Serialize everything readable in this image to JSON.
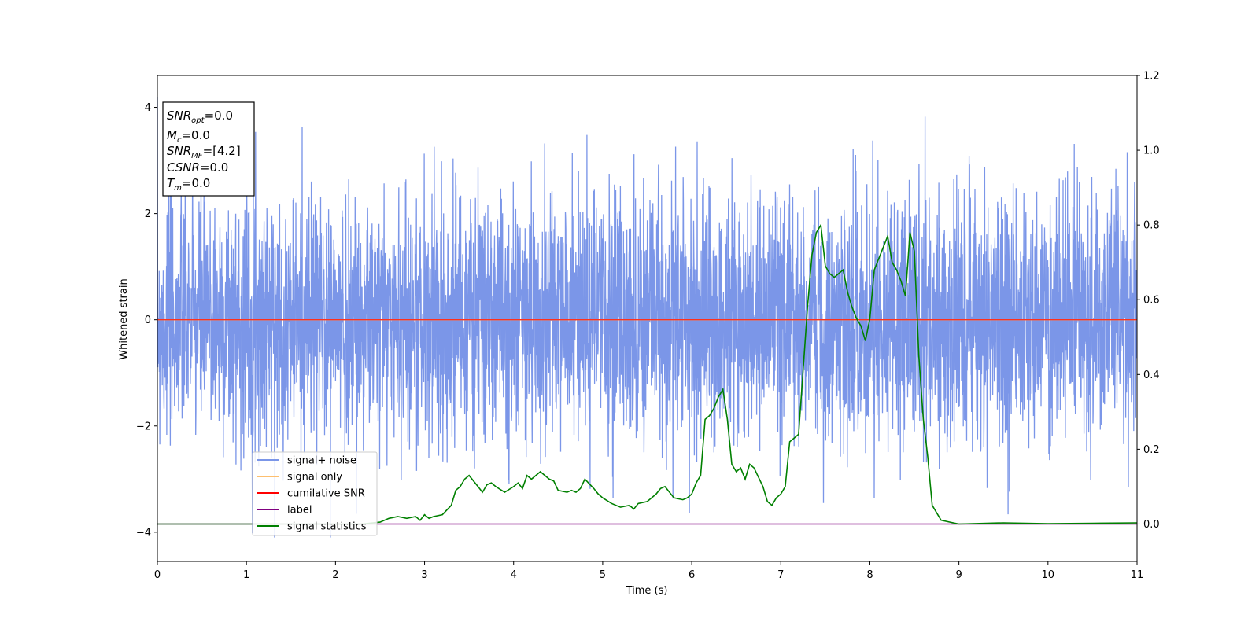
{
  "chart_data": {
    "type": "line",
    "xlabel": "Time (s)",
    "ylabel": "Whitened strain",
    "xlim": [
      0,
      11
    ],
    "ylim": [
      -4.55,
      4.6
    ],
    "y2lim": [
      -0.1,
      1.2
    ],
    "x_ticks": [
      "0",
      "1",
      "2",
      "3",
      "4",
      "5",
      "6",
      "7",
      "8",
      "9",
      "10",
      "11"
    ],
    "y_ticks": [
      "−4",
      "−2",
      "0",
      "2",
      "4"
    ],
    "y2_ticks": [
      "0.0",
      "0.2",
      "0.4",
      "0.6",
      "0.8",
      "1.0",
      "1.2"
    ],
    "grid": false,
    "legend_position": "lower-left",
    "info_box": {
      "position": "top-left",
      "lines": [
        {
          "sym": "SNR",
          "sub": "opt",
          "val": "=0.0"
        },
        {
          "sym": "M",
          "sub": "c",
          "val": "=0.0"
        },
        {
          "sym": "SNR",
          "sub": "MF",
          "val": "=[4.2]"
        },
        {
          "sym": "CSNR",
          "sub": "",
          "val": "=0.0"
        },
        {
          "sym": "T",
          "sub": "m",
          "val": "=0.0"
        }
      ]
    },
    "noise_seed": 7,
    "series": [
      {
        "name": "signal+ noise",
        "color": "#7b96e8",
        "axis": "left",
        "summary": "dense whitened noise, roughly 1.2 std, spanning about -4.1 to 4.2 over 0-11 s"
      },
      {
        "name": "signal only",
        "color": "#fdbf6f",
        "axis": "left",
        "x": [
          0,
          11
        ],
        "y": [
          0,
          0
        ]
      },
      {
        "name": "cumilative SNR",
        "color": "#ff0000",
        "axis": "left",
        "x": [
          0,
          11
        ],
        "y": [
          0,
          0
        ]
      },
      {
        "name": "label",
        "color": "#800080",
        "axis": "right",
        "x": [
          0,
          11
        ],
        "y": [
          0,
          0
        ]
      },
      {
        "name": "signal statistics",
        "color": "#008000",
        "axis": "right",
        "x": [
          0,
          0.5,
          1,
          1.5,
          2,
          2.3,
          2.5,
          2.6,
          2.7,
          2.8,
          2.9,
          2.95,
          3.0,
          3.05,
          3.1,
          3.2,
          3.3,
          3.35,
          3.4,
          3.45,
          3.5,
          3.6,
          3.65,
          3.7,
          3.75,
          3.8,
          3.9,
          4.0,
          4.05,
          4.1,
          4.15,
          4.2,
          4.3,
          4.4,
          4.45,
          4.5,
          4.6,
          4.65,
          4.7,
          4.75,
          4.8,
          4.9,
          4.95,
          5.0,
          5.1,
          5.2,
          5.3,
          5.35,
          5.4,
          5.5,
          5.6,
          5.65,
          5.7,
          5.8,
          5.9,
          5.95,
          6.0,
          6.05,
          6.1,
          6.15,
          6.2,
          6.25,
          6.3,
          6.35,
          6.4,
          6.45,
          6.5,
          6.55,
          6.6,
          6.65,
          6.7,
          6.8,
          6.85,
          6.9,
          6.95,
          7.0,
          7.05,
          7.1,
          7.15,
          7.2,
          7.25,
          7.3,
          7.35,
          7.4,
          7.45,
          7.5,
          7.55,
          7.6,
          7.65,
          7.7,
          7.75,
          7.8,
          7.85,
          7.9,
          7.95,
          8.0,
          8.05,
          8.1,
          8.15,
          8.2,
          8.25,
          8.3,
          8.35,
          8.4,
          8.45,
          8.5,
          8.55,
          8.6,
          8.65,
          8.7,
          8.8,
          8.9,
          9.0,
          9.5,
          10.0,
          10.5,
          11.0
        ],
        "y": [
          0.0,
          0.0,
          0.0,
          0.0,
          0.0,
          0.0,
          0.005,
          0.015,
          0.02,
          0.015,
          0.02,
          0.01,
          0.025,
          0.015,
          0.02,
          0.025,
          0.05,
          0.09,
          0.1,
          0.12,
          0.13,
          0.1,
          0.085,
          0.105,
          0.11,
          0.1,
          0.085,
          0.1,
          0.11,
          0.095,
          0.13,
          0.12,
          0.14,
          0.12,
          0.115,
          0.09,
          0.085,
          0.09,
          0.085,
          0.095,
          0.12,
          0.095,
          0.08,
          0.07,
          0.055,
          0.045,
          0.05,
          0.04,
          0.055,
          0.06,
          0.08,
          0.095,
          0.1,
          0.07,
          0.065,
          0.07,
          0.08,
          0.11,
          0.13,
          0.28,
          0.29,
          0.31,
          0.34,
          0.36,
          0.28,
          0.16,
          0.14,
          0.15,
          0.12,
          0.16,
          0.15,
          0.1,
          0.06,
          0.05,
          0.07,
          0.08,
          0.1,
          0.22,
          0.23,
          0.24,
          0.41,
          0.58,
          0.72,
          0.78,
          0.8,
          0.69,
          0.67,
          0.66,
          0.67,
          0.68,
          0.62,
          0.58,
          0.55,
          0.53,
          0.49,
          0.55,
          0.68,
          0.71,
          0.74,
          0.77,
          0.7,
          0.68,
          0.65,
          0.61,
          0.78,
          0.73,
          0.45,
          0.28,
          0.18,
          0.05,
          0.01,
          0.005,
          0.0,
          0.003,
          0.001,
          0.002,
          0.003
        ]
      }
    ]
  }
}
